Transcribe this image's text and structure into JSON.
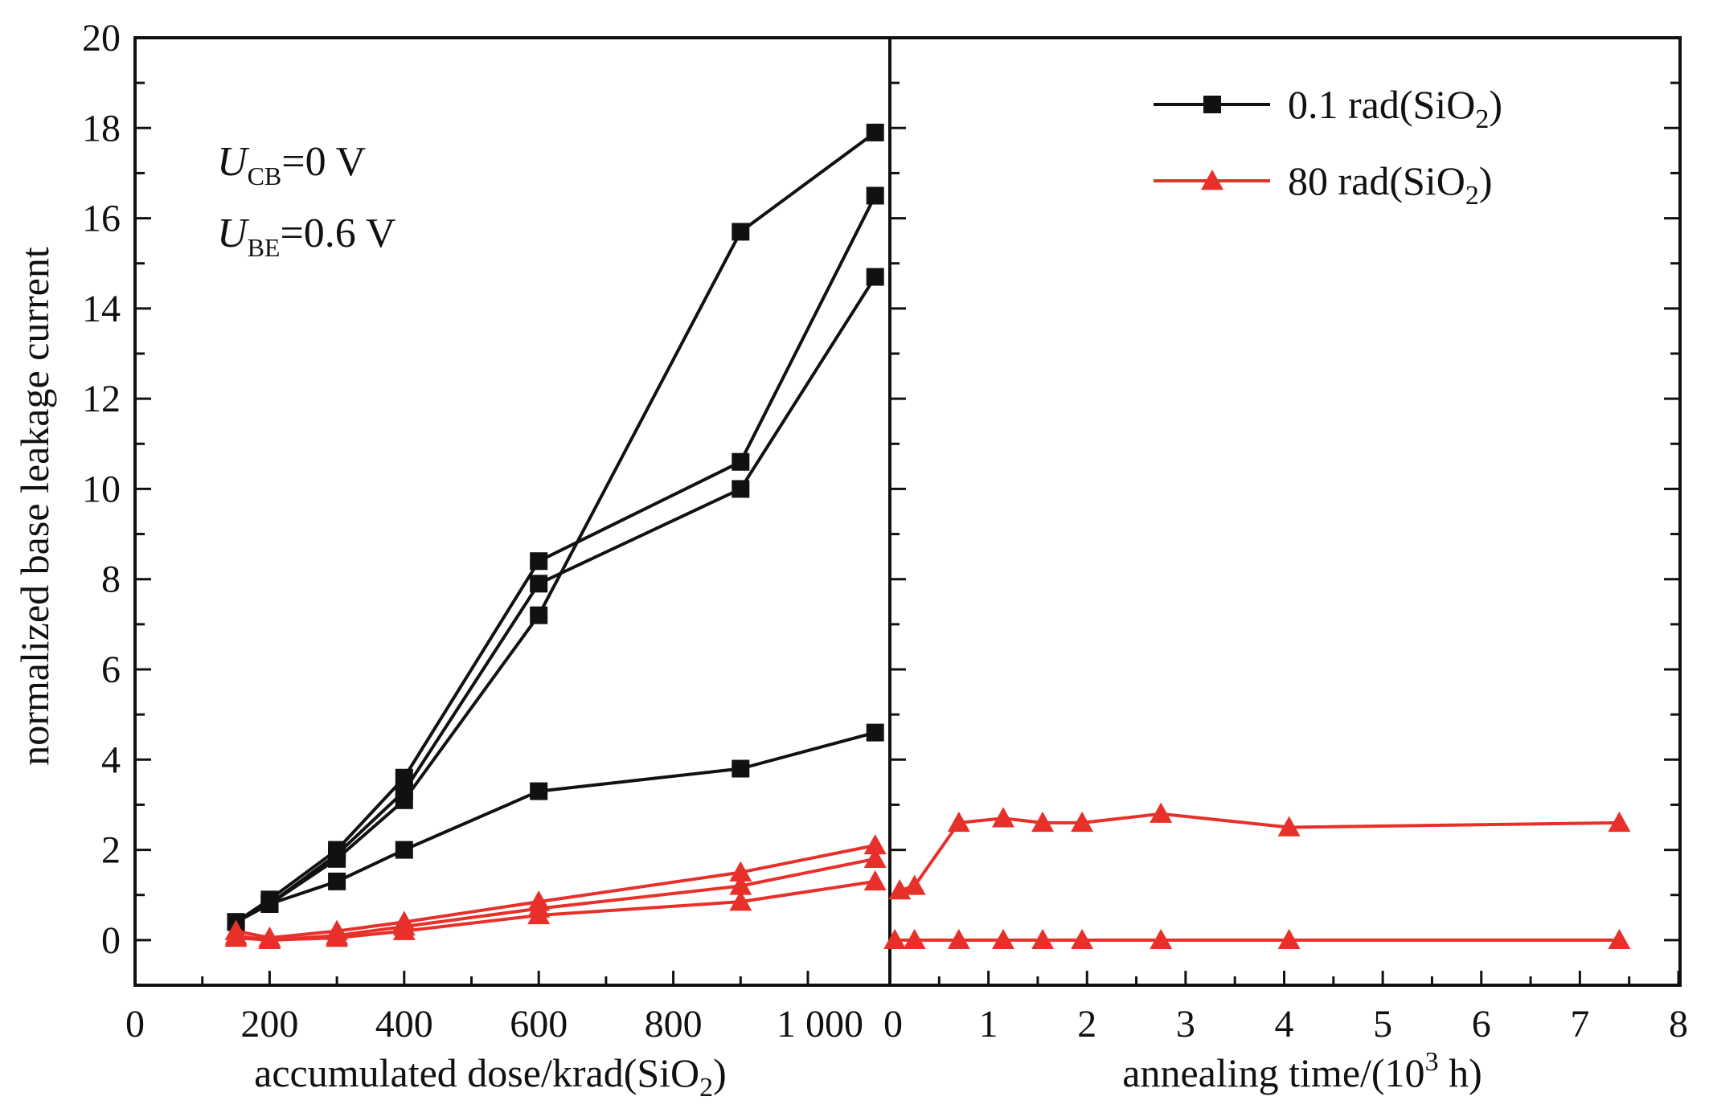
{
  "chart_data": {
    "type": "line",
    "ylabel": "normalized base leakage current",
    "ylim": [
      -1,
      20
    ],
    "yticks": [
      "0",
      "2",
      "4",
      "6",
      "8",
      "10",
      "12",
      "14",
      "16",
      "18",
      "20"
    ],
    "annotations": {
      "ucb": {
        "sym": "U",
        "sub": "CB",
        "rest": "=0 V"
      },
      "ube": {
        "sym": "U",
        "sub": "BE",
        "rest": "=0.6 V"
      }
    },
    "legend": {
      "placement": "top-right",
      "entries": [
        {
          "series": "black",
          "main": "0.1 rad(SiO",
          "sub": "2",
          "tail": ")",
          "marker": "square",
          "color": "#111111"
        },
        {
          "series": "red",
          "main": "80 rad(SiO",
          "sub": "2",
          "tail": ")",
          "marker": "triangle",
          "color": "#e8302a"
        }
      ]
    },
    "panels": [
      {
        "name": "irradiation",
        "xlabel": {
          "main": "accumulated dose/krad(SiO",
          "sub": "2",
          "tail": ")"
        },
        "xlim": [
          0,
          1100
        ],
        "xticks": [
          {
            "v": 0,
            "label": "0"
          },
          {
            "v": 200,
            "label": "200"
          },
          {
            "v": 400,
            "label": "400"
          },
          {
            "v": 600,
            "label": "600"
          },
          {
            "v": 800,
            "label": "800"
          },
          {
            "v": 1000,
            "label": "1 000"
          }
        ],
        "series": [
          {
            "group": "black",
            "marker": "square",
            "color": "#111111",
            "x": [
              150,
              200,
              300,
              400,
              600,
              900,
              1100
            ],
            "y": [
              0.4,
              0.9,
              2.0,
              3.6,
              8.4,
              10.6,
              16.5
            ]
          },
          {
            "group": "black",
            "marker": "square",
            "color": "#111111",
            "x": [
              150,
              200,
              300,
              400,
              600,
              900,
              1100
            ],
            "y": [
              0.4,
              0.8,
              1.9,
              3.3,
              7.9,
              10.0,
              14.7
            ]
          },
          {
            "group": "black",
            "marker": "square",
            "color": "#111111",
            "x": [
              150,
              200,
              300,
              400,
              600,
              900,
              1100
            ],
            "y": [
              0.4,
              0.8,
              1.8,
              3.1,
              7.2,
              15.7,
              17.9
            ]
          },
          {
            "group": "black",
            "marker": "square",
            "color": "#111111",
            "x": [
              150,
              200,
              300,
              400,
              600,
              900,
              1100
            ],
            "y": [
              0.4,
              0.8,
              1.3,
              2.0,
              3.3,
              3.8,
              4.6
            ]
          },
          {
            "group": "red",
            "marker": "triangle",
            "color": "#e8302a",
            "x": [
              150,
              200,
              300,
              400,
              600,
              900,
              1100
            ],
            "y": [
              0.2,
              0.05,
              0.2,
              0.4,
              0.85,
              1.5,
              2.1
            ]
          },
          {
            "group": "red",
            "marker": "triangle",
            "color": "#e8302a",
            "x": [
              150,
              200,
              300,
              400,
              600,
              900,
              1100
            ],
            "y": [
              0.1,
              0.0,
              0.1,
              0.3,
              0.7,
              1.2,
              1.8
            ]
          },
          {
            "group": "red",
            "marker": "triangle",
            "color": "#e8302a",
            "x": [
              150,
              200,
              300,
              400,
              600,
              900,
              1100
            ],
            "y": [
              0.05,
              0.0,
              0.05,
              0.2,
              0.55,
              0.85,
              1.3
            ]
          }
        ]
      },
      {
        "name": "annealing",
        "xlabel": {
          "main": "annealing time/(10",
          "sup": "3",
          "tail": " h)"
        },
        "xlim": [
          0,
          8
        ],
        "xticks": [
          {
            "v": 0,
            "label": "0"
          },
          {
            "v": 1,
            "label": "1"
          },
          {
            "v": 2,
            "label": "2"
          },
          {
            "v": 3,
            "label": "3"
          },
          {
            "v": 4,
            "label": "4"
          },
          {
            "v": 5,
            "label": "5"
          },
          {
            "v": 6,
            "label": "6"
          },
          {
            "v": 7,
            "label": "7"
          },
          {
            "v": 8,
            "label": "8"
          }
        ],
        "series": [
          {
            "group": "red",
            "marker": "triangle",
            "color": "#e8302a",
            "x": [
              0.1,
              0.25,
              0.7,
              1.15,
              1.55,
              1.95,
              2.75,
              4.05,
              7.4
            ],
            "y": [
              1.1,
              1.2,
              2.6,
              2.7,
              2.6,
              2.6,
              2.8,
              2.5,
              2.6
            ]
          },
          {
            "group": "red",
            "marker": "triangle",
            "color": "#e8302a",
            "x": [
              0.05,
              0.25,
              0.7,
              1.15,
              1.55,
              1.95,
              2.75,
              4.05,
              7.4
            ],
            "y": [
              0.0,
              0.0,
              0.0,
              0.0,
              0.0,
              0.0,
              0.0,
              0.0,
              0.0
            ]
          }
        ]
      }
    ]
  }
}
